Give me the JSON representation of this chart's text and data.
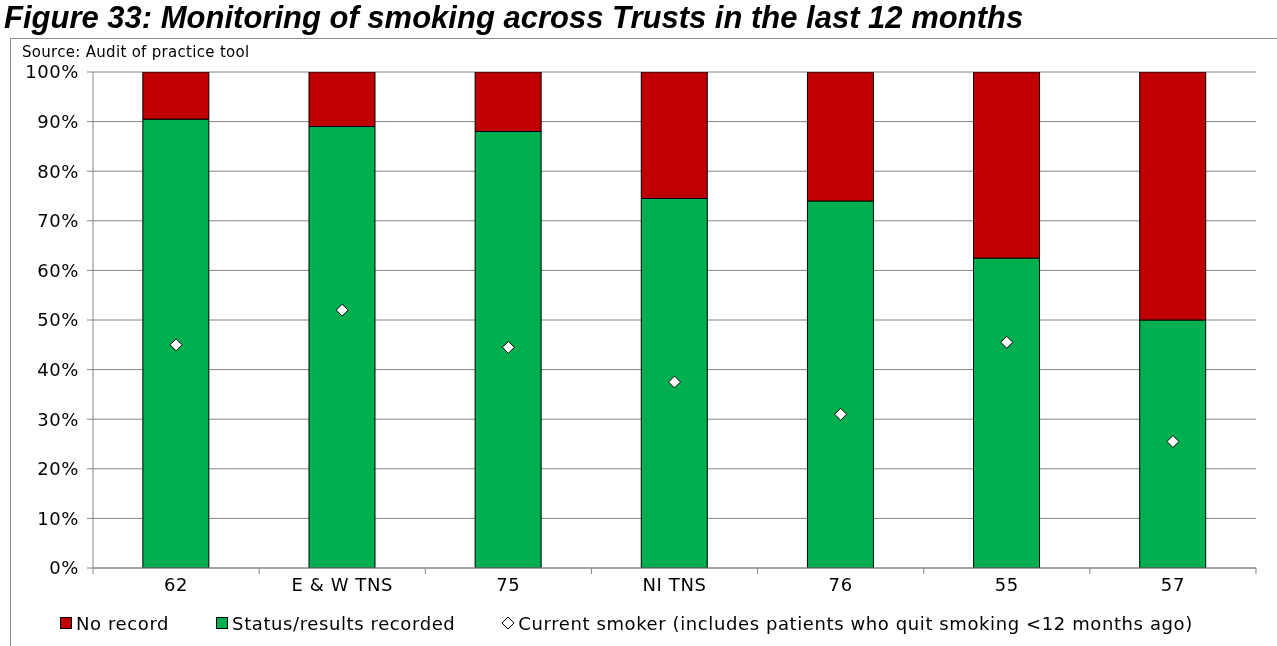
{
  "chart_data": {
    "type": "bar",
    "title": "Figure 33: Monitoring of smoking across Trusts in the last 12 months",
    "annotations": [
      "Source: Audit of practice tool"
    ],
    "categories": [
      "62",
      "E & W TNS",
      "75",
      "NI TNS",
      "76",
      "55",
      "57"
    ],
    "stacked": true,
    "series": [
      {
        "name": "Status/results recorded",
        "color": "#00b050",
        "values": [
          90.5,
          89,
          88,
          74.5,
          74,
          62.5,
          50
        ]
      },
      {
        "name": "No record",
        "color": "#c00000",
        "values": [
          9.5,
          11,
          12,
          25.5,
          26,
          37.5,
          50
        ]
      },
      {
        "name": "Current smoker (includes patients who quit smoking <12 months ago)",
        "type": "scatter",
        "marker": "diamond",
        "color": "#ffffff",
        "values": [
          45,
          52,
          44.5,
          37.5,
          31,
          45.5,
          25.5
        ]
      }
    ],
    "ylim": [
      0,
      100
    ],
    "yticks": [
      {
        "value": 0,
        "label": "0%"
      },
      {
        "value": 10,
        "label": "10%"
      },
      {
        "value": 20,
        "label": "20%"
      },
      {
        "value": 30,
        "label": "30%"
      },
      {
        "value": 40,
        "label": "40%"
      },
      {
        "value": 50,
        "label": "50%"
      },
      {
        "value": 60,
        "label": "60%"
      },
      {
        "value": 70,
        "label": "70%"
      },
      {
        "value": 80,
        "label": "80%"
      },
      {
        "value": 90,
        "label": "90%"
      },
      {
        "value": 100,
        "label": "100%"
      }
    ],
    "grid": "y",
    "legend": "bottom"
  }
}
